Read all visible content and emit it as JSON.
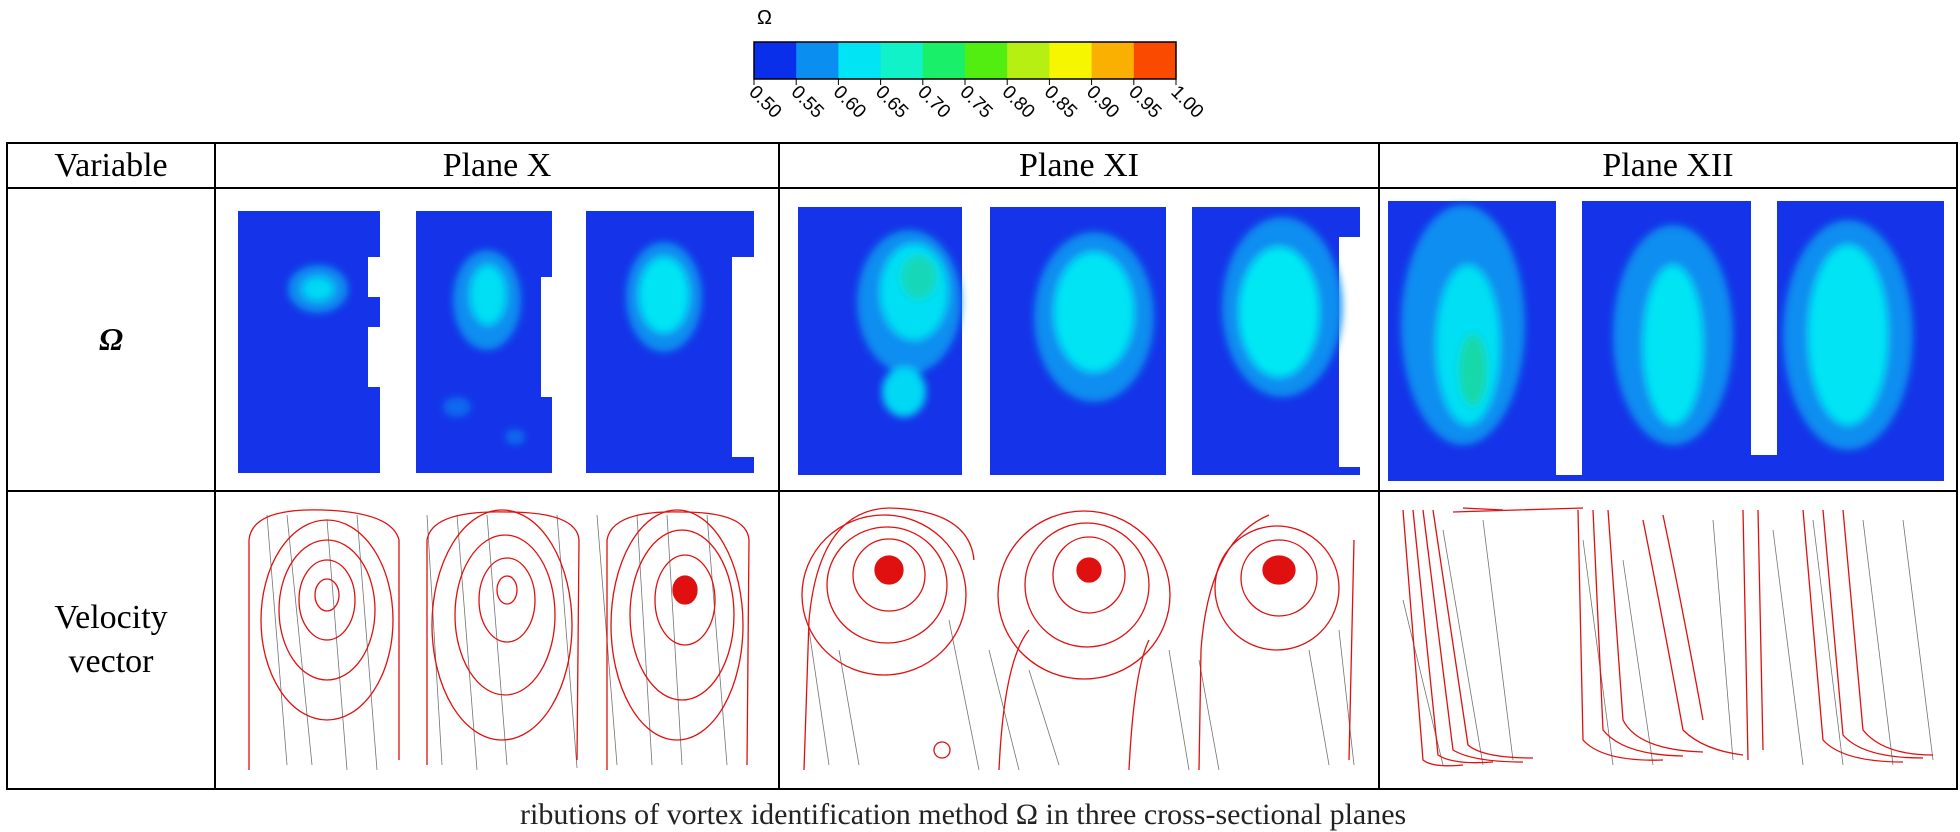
{
  "legend": {
    "symbol": "Ω",
    "ticks": [
      "0.50",
      "0.55",
      "0.60",
      "0.65",
      "0.70",
      "0.75",
      "0.80",
      "0.85",
      "0.90",
      "0.95",
      "1.00"
    ],
    "colors": [
      "#0a2fea",
      "#0a8ef0",
      "#00e4f4",
      "#12f2c8",
      "#1aef6a",
      "#52ee12",
      "#b8ef12",
      "#f6f600",
      "#fab000",
      "#fa4a00"
    ]
  },
  "table": {
    "header": {
      "variable": "Variable",
      "planes": [
        "Plane X",
        "Plane XI",
        "Plane XII"
      ]
    },
    "rows": {
      "omega_label": "Ω",
      "velocity_label_line1": "Velocity",
      "velocity_label_line2": "vector"
    }
  },
  "caption": "ributions of vortex identification method Ω in three cross-sectional planes"
}
